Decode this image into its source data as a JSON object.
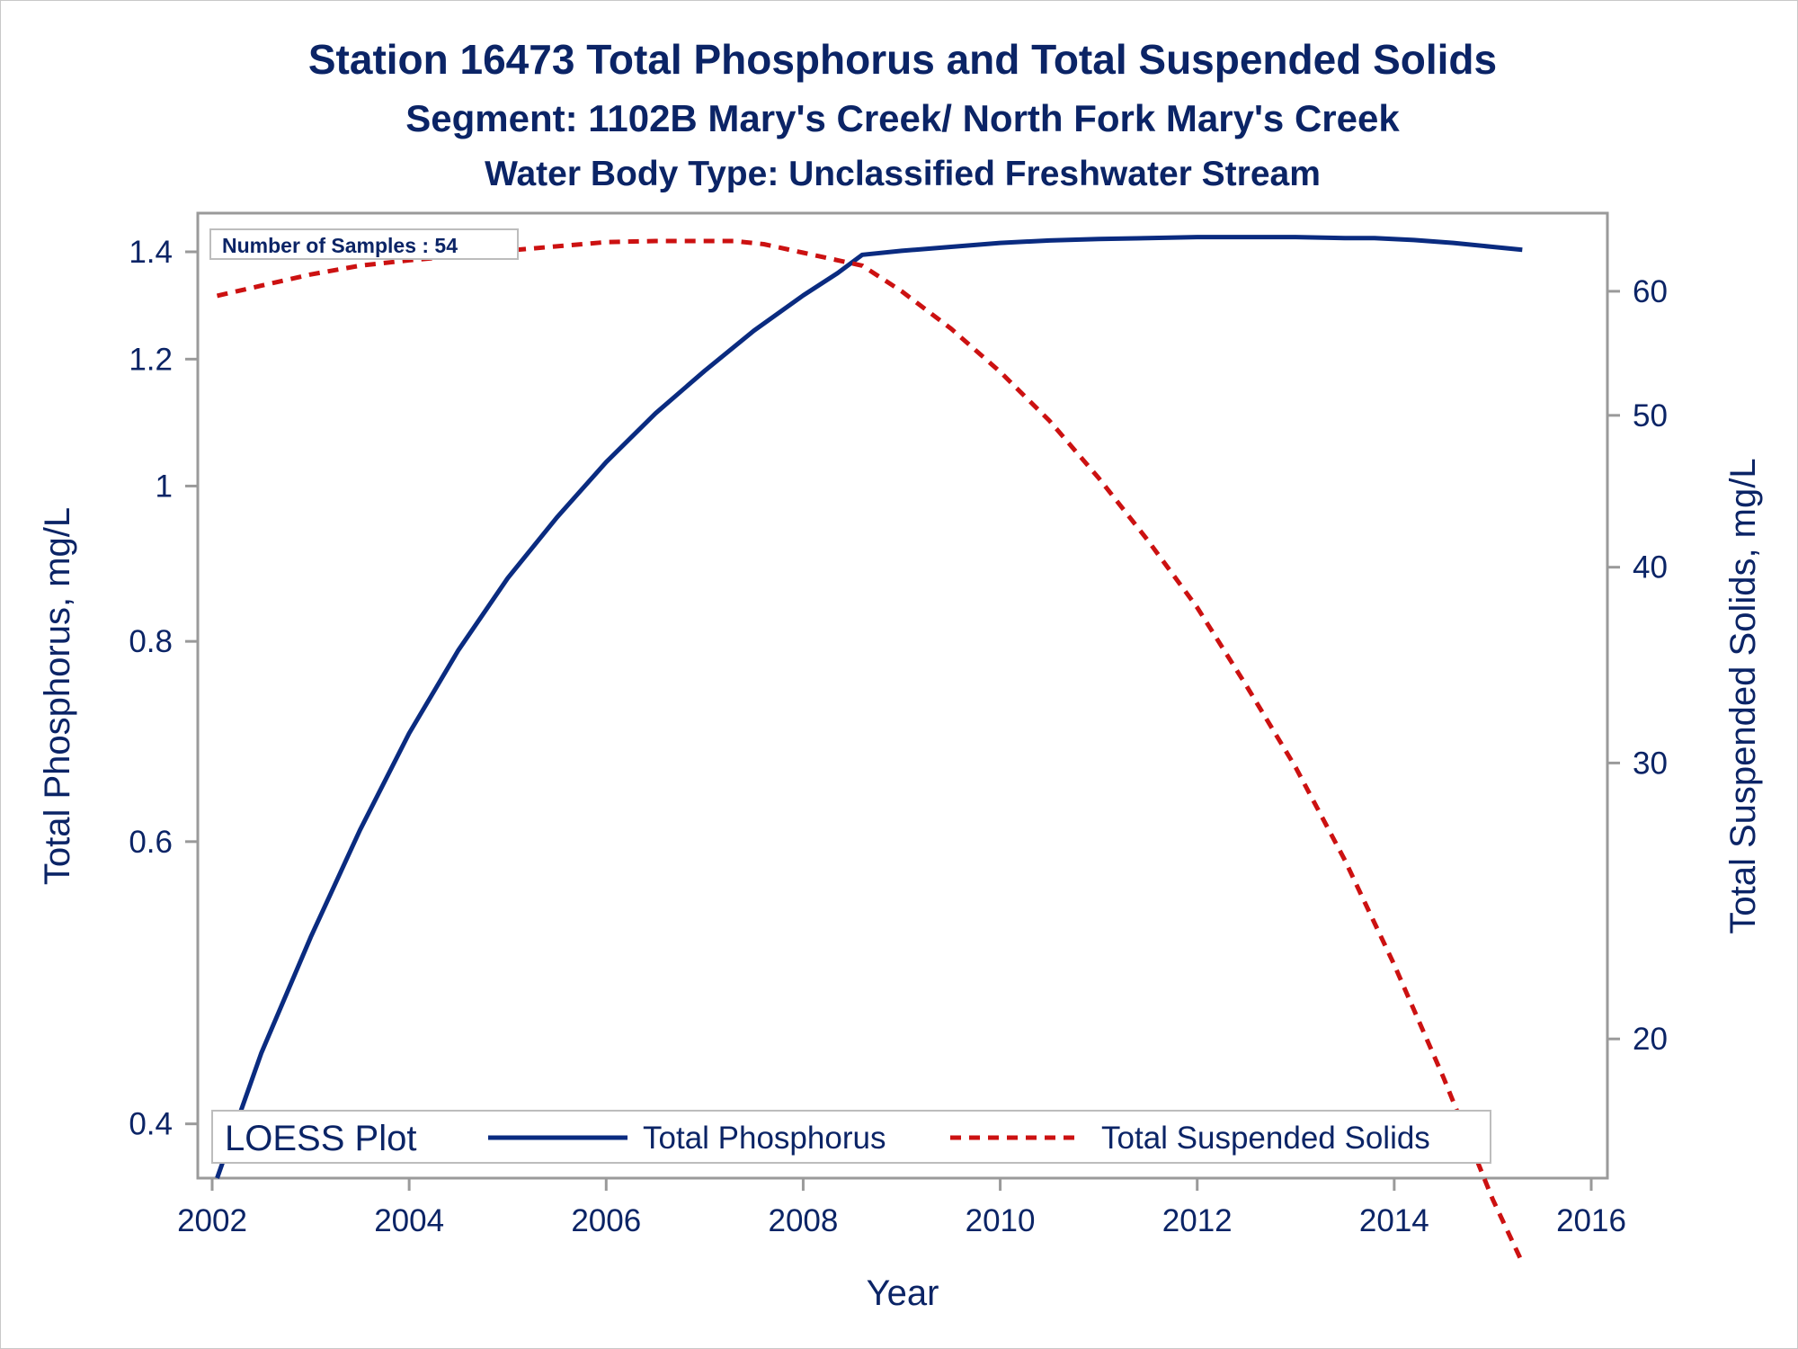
{
  "chart_data": {
    "type": "line",
    "title": "Station 16473  Total Phosphorus and Total Suspended Solids",
    "subtitle": "Segment: 1102B  Mary's Creek/ North Fork Mary's Creek",
    "subtitle2": "Water Body Type: Unclassified Freshwater Stream",
    "xlabel": "Year",
    "ylabel_left": "Total Phosphorus, mg/L",
    "ylabel_right": "Total Suspended Solids, mg/L",
    "y_scale": "log",
    "xlim": [
      2002,
      2016
    ],
    "ylim_left": [
      0.37,
      1.48
    ],
    "ylim_right": [
      16.3,
      67.3
    ],
    "x_ticks": [
      "2002",
      "2004",
      "2006",
      "2008",
      "2010",
      "2012",
      "2014",
      "2016"
    ],
    "y_ticks_left": [
      "0.4",
      "0.6",
      "0.8",
      "1",
      "1.2",
      "1.4"
    ],
    "y_ticks_right": [
      "20",
      "30",
      "40",
      "50",
      "60"
    ],
    "annotation": "Number of Samples : 54",
    "legend_title": "LOESS Plot",
    "legend_position": "bottom",
    "colors": {
      "text": "#0b2466",
      "phosphorus": "#0a2b80",
      "tss": "#cc1111",
      "axis": "#9a9a9a"
    },
    "series": [
      {
        "name": "Total Phosphorus",
        "axis": "left",
        "style": "solid",
        "x": [
          2002.05,
          2002.5,
          2003.0,
          2003.5,
          2004.0,
          2004.5,
          2005.0,
          2005.5,
          2006.0,
          2006.5,
          2007.0,
          2007.5,
          2008.0,
          2008.35,
          2008.6,
          2009.0,
          2009.5,
          2010.0,
          2010.5,
          2011.0,
          2011.5,
          2012.0,
          2012.5,
          2013.0,
          2013.5,
          2013.8,
          2014.2,
          2014.6,
          2015.0,
          2015.3
        ],
        "values": [
          0.37,
          0.443,
          0.523,
          0.61,
          0.701,
          0.79,
          0.876,
          0.956,
          1.035,
          1.11,
          1.18,
          1.25,
          1.315,
          1.358,
          1.394,
          1.402,
          1.41,
          1.418,
          1.423,
          1.426,
          1.428,
          1.43,
          1.43,
          1.43,
          1.428,
          1.428,
          1.424,
          1.418,
          1.41,
          1.404
        ]
      },
      {
        "name": "Total Suspended Solids",
        "axis": "right",
        "style": "dashed",
        "x": [
          2002.05,
          2002.5,
          2003.0,
          2003.5,
          2004.0,
          2004.5,
          2005.0,
          2005.5,
          2006.0,
          2006.5,
          2007.0,
          2007.3,
          2007.6,
          2008.0,
          2008.35,
          2008.6,
          2009.0,
          2009.5,
          2010.0,
          2010.5,
          2011.0,
          2011.5,
          2012.0,
          2012.5,
          2013.0,
          2013.5,
          2014.0,
          2014.5,
          2015.0,
          2015.3
        ],
        "values": [
          59.6,
          60.5,
          61.5,
          62.3,
          62.8,
          63.2,
          63.7,
          64.1,
          64.5,
          64.6,
          64.6,
          64.6,
          64.3,
          63.5,
          62.8,
          62.3,
          60.0,
          56.8,
          53.3,
          49.6,
          45.6,
          41.6,
          37.7,
          33.6,
          29.8,
          26.0,
          22.3,
          18.9,
          15.8,
          14.4
        ]
      }
    ]
  }
}
